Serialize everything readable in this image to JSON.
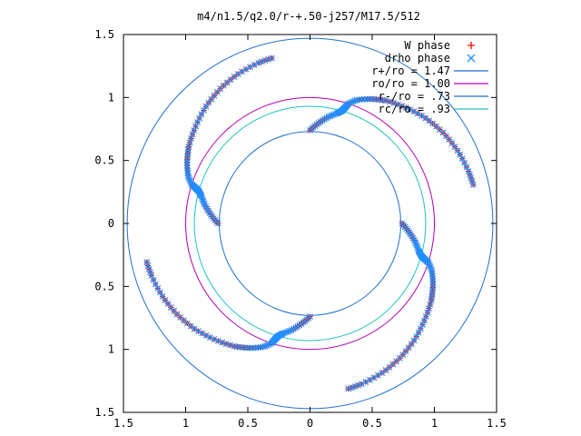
{
  "chart_data": {
    "type": "scatter",
    "title": "m4/n1.5/q2.0/r-+.50-j257/M17.5/512",
    "xlim": [
      -1.5,
      1.5
    ],
    "ylim": [
      -1.5,
      1.5
    ],
    "x_tick_values": [
      -1.5,
      -1,
      -0.5,
      0,
      0.5,
      1,
      1.5
    ],
    "x_tick_labels": [
      "1.5",
      "1",
      "0.5",
      "0",
      "0.5",
      "1",
      "1.5"
    ],
    "y_tick_values": [
      1.5,
      1,
      0.5,
      0,
      -0.5,
      -1,
      -1.5
    ],
    "y_tick_labels": [
      "1.5",
      "1",
      "0.5",
      "0",
      "0.5",
      "1",
      "1.5"
    ],
    "grid": false,
    "legend_position": "top-right",
    "legend": [
      {
        "label": "W phase",
        "marker": "+",
        "color": "#ff0000"
      },
      {
        "label": "drho phase",
        "marker": "x",
        "color": "#1e90ff"
      },
      {
        "label": "r+/ro = 1.47",
        "line": true,
        "color": "#1e6fd0"
      },
      {
        "label": "ro/ro = 1.00",
        "line": true,
        "color": "#b000b0"
      },
      {
        "label": "r-/ro = .73",
        "line": true,
        "color": "#1e6fd0"
      },
      {
        "label": "rc/ro = .93",
        "line": true,
        "color": "#20c0c0"
      }
    ],
    "circles": [
      {
        "name": "r+/ro",
        "r": 1.47,
        "color": "#1e6fd0"
      },
      {
        "name": "ro/ro",
        "r": 1.0,
        "color": "#b000b0"
      },
      {
        "name": "r-/ro",
        "r": 0.73,
        "color": "#1e6fd0"
      },
      {
        "name": "rc/ro",
        "r": 0.93,
        "color": "#20c0c0"
      }
    ],
    "series": [
      {
        "name": "W phase",
        "color": "#ff0000",
        "marker": "+",
        "arms": [
          {
            "start_deg": 90,
            "points": [
              [
                0.74,
                0
              ],
              [
                0.8,
                5
              ],
              [
                0.86,
                10
              ],
              [
                0.9,
                14
              ],
              [
                0.93,
                16
              ],
              [
                0.96,
                17
              ],
              [
                1.0,
                18
              ],
              [
                1.05,
                21
              ],
              [
                1.1,
                26
              ],
              [
                1.15,
                32
              ],
              [
                1.2,
                40
              ],
              [
                1.25,
                48
              ],
              [
                1.29,
                56
              ],
              [
                1.32,
                64
              ],
              [
                1.34,
                72
              ],
              [
                1.35,
                78
              ]
            ]
          },
          {
            "start_deg": 0,
            "points": [
              [
                0.74,
                0
              ],
              [
                0.8,
                5
              ],
              [
                0.86,
                10
              ],
              [
                0.9,
                14
              ],
              [
                0.93,
                16
              ],
              [
                0.96,
                17
              ],
              [
                1.0,
                18
              ],
              [
                1.05,
                21
              ],
              [
                1.1,
                26
              ],
              [
                1.15,
                32
              ],
              [
                1.2,
                40
              ],
              [
                1.25,
                48
              ],
              [
                1.29,
                56
              ],
              [
                1.32,
                64
              ],
              [
                1.34,
                72
              ],
              [
                1.35,
                78
              ]
            ]
          },
          {
            "start_deg": 270,
            "points": [
              [
                0.74,
                0
              ],
              [
                0.8,
                5
              ],
              [
                0.86,
                10
              ],
              [
                0.9,
                14
              ],
              [
                0.93,
                16
              ],
              [
                0.96,
                17
              ],
              [
                1.0,
                18
              ],
              [
                1.05,
                21
              ],
              [
                1.1,
                26
              ],
              [
                1.15,
                32
              ],
              [
                1.2,
                40
              ],
              [
                1.25,
                48
              ],
              [
                1.29,
                56
              ],
              [
                1.32,
                64
              ],
              [
                1.34,
                72
              ],
              [
                1.35,
                78
              ]
            ]
          },
          {
            "start_deg": 180,
            "points": [
              [
                0.74,
                0
              ],
              [
                0.8,
                5
              ],
              [
                0.86,
                10
              ],
              [
                0.9,
                14
              ],
              [
                0.93,
                16
              ],
              [
                0.96,
                17
              ],
              [
                1.0,
                18
              ],
              [
                1.05,
                21
              ],
              [
                1.1,
                26
              ],
              [
                1.15,
                32
              ],
              [
                1.2,
                40
              ],
              [
                1.25,
                48
              ],
              [
                1.29,
                56
              ],
              [
                1.32,
                64
              ],
              [
                1.34,
                72
              ],
              [
                1.35,
                78
              ]
            ]
          }
        ]
      },
      {
        "name": "drho phase",
        "color": "#1e90ff",
        "marker": "x",
        "arms": [
          {
            "start_deg": 90,
            "points": [
              [
                0.74,
                0
              ],
              [
                0.8,
                5
              ],
              [
                0.86,
                10
              ],
              [
                0.9,
                14
              ],
              [
                0.93,
                16
              ],
              [
                0.96,
                17
              ],
              [
                1.0,
                18
              ],
              [
                1.05,
                21
              ],
              [
                1.1,
                26
              ],
              [
                1.15,
                32
              ],
              [
                1.2,
                40
              ],
              [
                1.25,
                48
              ],
              [
                1.29,
                56
              ],
              [
                1.32,
                64
              ],
              [
                1.34,
                72
              ],
              [
                1.35,
                78
              ]
            ]
          },
          {
            "start_deg": 0,
            "points": [
              [
                0.74,
                0
              ],
              [
                0.8,
                5
              ],
              [
                0.86,
                10
              ],
              [
                0.9,
                14
              ],
              [
                0.93,
                16
              ],
              [
                0.96,
                17
              ],
              [
                1.0,
                18
              ],
              [
                1.05,
                21
              ],
              [
                1.1,
                26
              ],
              [
                1.15,
                32
              ],
              [
                1.2,
                40
              ],
              [
                1.25,
                48
              ],
              [
                1.29,
                56
              ],
              [
                1.32,
                64
              ],
              [
                1.34,
                72
              ],
              [
                1.35,
                78
              ]
            ]
          },
          {
            "start_deg": 270,
            "points": [
              [
                0.74,
                0
              ],
              [
                0.8,
                5
              ],
              [
                0.86,
                10
              ],
              [
                0.9,
                14
              ],
              [
                0.93,
                16
              ],
              [
                0.96,
                17
              ],
              [
                1.0,
                18
              ],
              [
                1.05,
                21
              ],
              [
                1.1,
                26
              ],
              [
                1.15,
                32
              ],
              [
                1.2,
                40
              ],
              [
                1.25,
                48
              ],
              [
                1.29,
                56
              ],
              [
                1.32,
                64
              ],
              [
                1.34,
                72
              ],
              [
                1.35,
                78
              ]
            ]
          },
          {
            "start_deg": 180,
            "points": [
              [
                0.74,
                0
              ],
              [
                0.8,
                5
              ],
              [
                0.86,
                10
              ],
              [
                0.9,
                14
              ],
              [
                0.93,
                16
              ],
              [
                0.96,
                17
              ],
              [
                1.0,
                18
              ],
              [
                1.05,
                21
              ],
              [
                1.1,
                26
              ],
              [
                1.15,
                32
              ],
              [
                1.2,
                40
              ],
              [
                1.25,
                48
              ],
              [
                1.29,
                56
              ],
              [
                1.32,
                64
              ],
              [
                1.34,
                72
              ],
              [
                1.35,
                78
              ]
            ]
          }
        ]
      }
    ]
  }
}
